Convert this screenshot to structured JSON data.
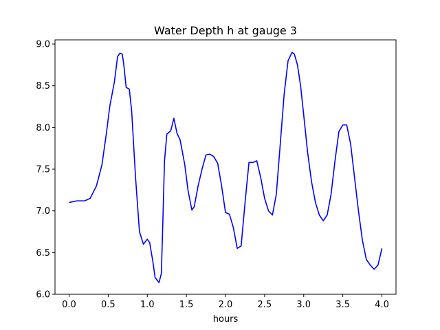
{
  "chart_data": {
    "type": "line",
    "title": "Water Depth h at gauge 3",
    "xlabel": "hours",
    "ylabel": "",
    "xlim": [
      -0.18,
      4.18
    ],
    "ylim": [
      6.0,
      9.05
    ],
    "xticks": [
      0.0,
      0.5,
      1.0,
      1.5,
      2.0,
      2.5,
      3.0,
      3.5,
      4.0
    ],
    "xtick_labels": [
      "0.0",
      "0.5",
      "1.0",
      "1.5",
      "2.0",
      "2.5",
      "3.0",
      "3.5",
      "4.0"
    ],
    "yticks": [
      6.0,
      6.5,
      7.0,
      7.5,
      8.0,
      8.5,
      9.0
    ],
    "ytick_labels": [
      "6.0",
      "6.5",
      "7.0",
      "7.5",
      "8.0",
      "8.5",
      "9.0"
    ],
    "grid": false,
    "series": [
      {
        "color": "#0000ff",
        "points": [
          [
            0.0,
            7.1
          ],
          [
            0.05,
            7.11
          ],
          [
            0.1,
            7.12
          ],
          [
            0.2,
            7.12
          ],
          [
            0.27,
            7.15
          ],
          [
            0.35,
            7.3
          ],
          [
            0.42,
            7.55
          ],
          [
            0.48,
            7.95
          ],
          [
            0.52,
            8.25
          ],
          [
            0.58,
            8.55
          ],
          [
            0.62,
            8.85
          ],
          [
            0.65,
            8.89
          ],
          [
            0.68,
            8.88
          ],
          [
            0.7,
            8.75
          ],
          [
            0.73,
            8.48
          ],
          [
            0.77,
            8.46
          ],
          [
            0.8,
            8.2
          ],
          [
            0.85,
            7.4
          ],
          [
            0.9,
            6.75
          ],
          [
            0.95,
            6.6
          ],
          [
            1.0,
            6.66
          ],
          [
            1.03,
            6.62
          ],
          [
            1.07,
            6.4
          ],
          [
            1.1,
            6.2
          ],
          [
            1.15,
            6.14
          ],
          [
            1.18,
            6.25
          ],
          [
            1.2,
            6.9
          ],
          [
            1.22,
            7.6
          ],
          [
            1.25,
            7.92
          ],
          [
            1.3,
            7.96
          ],
          [
            1.34,
            8.11
          ],
          [
            1.38,
            7.93
          ],
          [
            1.42,
            7.85
          ],
          [
            1.48,
            7.55
          ],
          [
            1.52,
            7.25
          ],
          [
            1.57,
            7.01
          ],
          [
            1.6,
            7.05
          ],
          [
            1.65,
            7.3
          ],
          [
            1.7,
            7.5
          ],
          [
            1.75,
            7.67
          ],
          [
            1.8,
            7.68
          ],
          [
            1.85,
            7.65
          ],
          [
            1.9,
            7.57
          ],
          [
            1.95,
            7.3
          ],
          [
            2.0,
            6.98
          ],
          [
            2.05,
            6.96
          ],
          [
            2.1,
            6.8
          ],
          [
            2.15,
            6.55
          ],
          [
            2.2,
            6.58
          ],
          [
            2.25,
            7.1
          ],
          [
            2.3,
            7.58
          ],
          [
            2.35,
            7.58
          ],
          [
            2.4,
            7.6
          ],
          [
            2.45,
            7.4
          ],
          [
            2.5,
            7.15
          ],
          [
            2.55,
            7.0
          ],
          [
            2.6,
            6.95
          ],
          [
            2.65,
            7.2
          ],
          [
            2.7,
            7.8
          ],
          [
            2.75,
            8.4
          ],
          [
            2.8,
            8.8
          ],
          [
            2.85,
            8.9
          ],
          [
            2.88,
            8.88
          ],
          [
            2.92,
            8.75
          ],
          [
            2.96,
            8.5
          ],
          [
            3.0,
            8.15
          ],
          [
            3.05,
            7.7
          ],
          [
            3.1,
            7.35
          ],
          [
            3.15,
            7.1
          ],
          [
            3.2,
            6.95
          ],
          [
            3.25,
            6.88
          ],
          [
            3.3,
            6.95
          ],
          [
            3.35,
            7.2
          ],
          [
            3.4,
            7.6
          ],
          [
            3.45,
            7.95
          ],
          [
            3.5,
            8.03
          ],
          [
            3.55,
            8.03
          ],
          [
            3.6,
            7.8
          ],
          [
            3.65,
            7.4
          ],
          [
            3.7,
            7.0
          ],
          [
            3.75,
            6.65
          ],
          [
            3.8,
            6.42
          ],
          [
            3.85,
            6.35
          ],
          [
            3.9,
            6.3
          ],
          [
            3.95,
            6.35
          ],
          [
            4.0,
            6.55
          ]
        ]
      }
    ]
  }
}
